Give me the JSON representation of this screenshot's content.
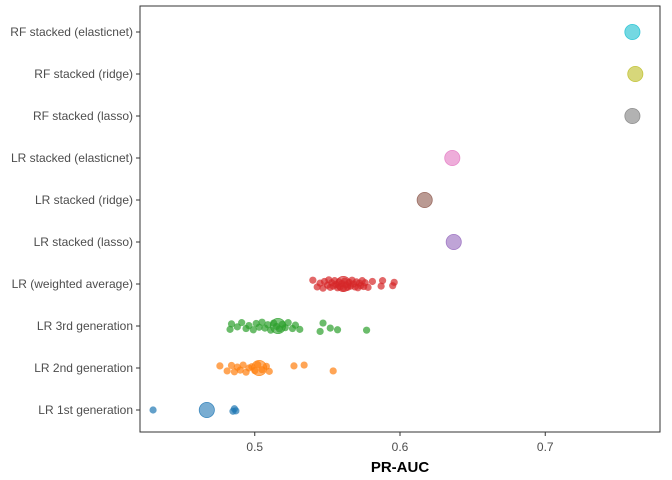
{
  "chart_data": {
    "type": "scatter",
    "title": "",
    "xlabel": "PR-AUC",
    "ylabel": "",
    "xlim": [
      0.421,
      0.779
    ],
    "x_ticks": [
      0.5,
      0.6,
      0.7
    ],
    "x_tick_labels": [
      "0.5",
      "0.6",
      "0.7"
    ],
    "grid": false,
    "legend": "none",
    "categories": [
      "LR 1st generation",
      "LR 2nd generation",
      "LR 3rd generation",
      "LR (weighted average)",
      "LR stacked (lasso)",
      "LR stacked (ridge)",
      "LR stacked (elasticnet)",
      "RF stacked (lasso)",
      "RF stacked (ridge)",
      "RF stacked (elasticnet)"
    ],
    "series": [
      {
        "category": "LR 1st generation",
        "color": "#1f77b4",
        "mean": 0.467,
        "points": [
          [
            0.43,
            0.0
          ],
          [
            0.485,
            0.03
          ],
          [
            0.486,
            -0.03
          ],
          [
            0.487,
            0.02
          ]
        ]
      },
      {
        "category": "LR 2nd generation",
        "color": "#ff7f0e",
        "mean": 0.503,
        "points": [
          [
            0.476,
            -0.05
          ],
          [
            0.481,
            0.07
          ],
          [
            0.484,
            -0.06
          ],
          [
            0.486,
            0.09
          ],
          [
            0.488,
            -0.02
          ],
          [
            0.49,
            0.05
          ],
          [
            0.492,
            -0.07
          ],
          [
            0.494,
            0.1
          ],
          [
            0.496,
            0.0
          ],
          [
            0.498,
            -0.03
          ],
          [
            0.5,
            0.06
          ],
          [
            0.502,
            -0.08
          ],
          [
            0.505,
            0.04
          ],
          [
            0.508,
            -0.04
          ],
          [
            0.51,
            0.08
          ],
          [
            0.527,
            -0.05
          ],
          [
            0.534,
            -0.07
          ],
          [
            0.554,
            0.07
          ]
        ]
      },
      {
        "category": "LR 3rd generation",
        "color": "#2ca02c",
        "mean": 0.516,
        "points": [
          [
            0.483,
            0.08
          ],
          [
            0.484,
            -0.05
          ],
          [
            0.488,
            0.02
          ],
          [
            0.491,
            -0.08
          ],
          [
            0.494,
            0.06
          ],
          [
            0.496,
            -0.01
          ],
          [
            0.499,
            0.09
          ],
          [
            0.501,
            -0.06
          ],
          [
            0.503,
            0.03
          ],
          [
            0.505,
            -0.09
          ],
          [
            0.507,
            0.05
          ],
          [
            0.509,
            -0.03
          ],
          [
            0.511,
            0.1
          ],
          [
            0.513,
            -0.07
          ],
          [
            0.515,
            0.01
          ],
          [
            0.517,
            0.07
          ],
          [
            0.519,
            -0.04
          ],
          [
            0.521,
            0.04
          ],
          [
            0.523,
            -0.08
          ],
          [
            0.526,
            0.06
          ],
          [
            0.528,
            -0.02
          ],
          [
            0.531,
            0.08
          ],
          [
            0.545,
            0.13
          ],
          [
            0.547,
            -0.07
          ],
          [
            0.552,
            0.05
          ],
          [
            0.557,
            0.09
          ],
          [
            0.577,
            0.1
          ]
        ]
      },
      {
        "category": "LR (weighted average)",
        "color": "#d62728",
        "mean": 0.561,
        "points": [
          [
            0.54,
            -0.09
          ],
          [
            0.543,
            0.07
          ],
          [
            0.545,
            -0.02
          ],
          [
            0.547,
            0.1
          ],
          [
            0.548,
            -0.06
          ],
          [
            0.55,
            0.03
          ],
          [
            0.551,
            -0.1
          ],
          [
            0.552,
            0.08
          ],
          [
            0.553,
            -0.03
          ],
          [
            0.554,
            0.05
          ],
          [
            0.555,
            -0.08
          ],
          [
            0.556,
            0.01
          ],
          [
            0.557,
            0.09
          ],
          [
            0.558,
            -0.05
          ],
          [
            0.559,
            0.06
          ],
          [
            0.56,
            -0.01
          ],
          [
            0.561,
            0.1
          ],
          [
            0.562,
            -0.07
          ],
          [
            0.563,
            0.02
          ],
          [
            0.564,
            0.08
          ],
          [
            0.565,
            -0.04
          ],
          [
            0.566,
            0.05
          ],
          [
            0.567,
            -0.09
          ],
          [
            0.568,
            0.0
          ],
          [
            0.569,
            0.07
          ],
          [
            0.57,
            -0.05
          ],
          [
            0.571,
            0.09
          ],
          [
            0.572,
            -0.02
          ],
          [
            0.573,
            0.04
          ],
          [
            0.574,
            -0.08
          ],
          [
            0.575,
            0.06
          ],
          [
            0.576,
            -0.03
          ],
          [
            0.578,
            0.08
          ],
          [
            0.581,
            -0.06
          ],
          [
            0.587,
            0.05
          ],
          [
            0.588,
            -0.08
          ],
          [
            0.595,
            0.04
          ],
          [
            0.596,
            -0.04
          ]
        ]
      },
      {
        "category": "LR stacked (lasso)",
        "color": "#9467bd",
        "mean": 0.637,
        "points": []
      },
      {
        "category": "LR stacked (ridge)",
        "color": "#8c564b",
        "mean": 0.617,
        "points": []
      },
      {
        "category": "LR stacked (elasticnet)",
        "color": "#e377c2",
        "mean": 0.636,
        "points": []
      },
      {
        "category": "RF stacked (lasso)",
        "color": "#7f7f7f",
        "mean": 0.76,
        "points": []
      },
      {
        "category": "RF stacked (ridge)",
        "color": "#bcbd22",
        "mean": 0.762,
        "points": []
      },
      {
        "category": "RF stacked (elasticnet)",
        "color": "#17becf",
        "mean": 0.76,
        "points": []
      }
    ]
  }
}
